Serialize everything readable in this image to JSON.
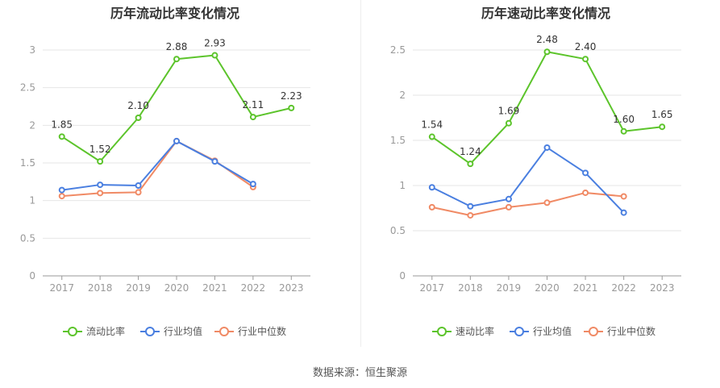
{
  "source_text": "数据来源：恒生聚源",
  "colors": {
    "company": "#5cc42b",
    "industry_avg": "#4a7fe0",
    "industry_median": "#f08a65",
    "grid": "#e6e6e6",
    "axis": "#999999",
    "tick_text": "#999999",
    "label_text": "#333333"
  },
  "chart_data": [
    {
      "type": "line",
      "title": "历年流动比率变化情况",
      "x": [
        "2017",
        "2018",
        "2019",
        "2020",
        "2021",
        "2022",
        "2023"
      ],
      "ylim": [
        0,
        3
      ],
      "yticks": [
        "0",
        "0.5",
        "1",
        "1.5",
        "2",
        "2.5",
        "3"
      ],
      "ytick_values": [
        0,
        0.5,
        1,
        1.5,
        2,
        2.5,
        3
      ],
      "grid": true,
      "legend_position": "bottom",
      "series": [
        {
          "name": "流动比率",
          "color_key": "company",
          "labeled": true,
          "values": [
            1.85,
            1.52,
            2.1,
            2.88,
            2.93,
            2.11,
            2.23
          ],
          "labels": [
            "1.85",
            "1.52",
            "2.10",
            "2.88",
            "2.93",
            "2.11",
            "2.23"
          ]
        },
        {
          "name": "行业均值",
          "color_key": "industry_avg",
          "labeled": false,
          "values": [
            1.14,
            1.21,
            1.2,
            1.79,
            1.52,
            1.22,
            null
          ]
        },
        {
          "name": "行业中位数",
          "color_key": "industry_median",
          "labeled": false,
          "values": [
            1.06,
            1.1,
            1.11,
            1.79,
            1.53,
            1.18,
            null
          ]
        }
      ]
    },
    {
      "type": "line",
      "title": "历年速动比率变化情况",
      "x": [
        "2017",
        "2018",
        "2019",
        "2020",
        "2021",
        "2022",
        "2023"
      ],
      "ylim": [
        0,
        2.5
      ],
      "yticks": [
        "0",
        "0.5",
        "1",
        "1.5",
        "2",
        "2.5"
      ],
      "ytick_values": [
        0,
        0.5,
        1,
        1.5,
        2,
        2.5
      ],
      "grid": true,
      "legend_position": "bottom",
      "series": [
        {
          "name": "速动比率",
          "color_key": "company",
          "labeled": true,
          "values": [
            1.54,
            1.24,
            1.69,
            2.48,
            2.4,
            1.6,
            1.65
          ],
          "labels": [
            "1.54",
            "1.24",
            "1.69",
            "2.48",
            "2.40",
            "1.60",
            "1.65"
          ]
        },
        {
          "name": "行业均值",
          "color_key": "industry_avg",
          "labeled": false,
          "values": [
            0.98,
            0.77,
            0.85,
            1.42,
            1.14,
            0.7,
            null
          ]
        },
        {
          "name": "行业中位数",
          "color_key": "industry_median",
          "labeled": false,
          "values": [
            0.76,
            0.67,
            0.76,
            0.81,
            0.92,
            0.88,
            null
          ]
        }
      ]
    }
  ]
}
